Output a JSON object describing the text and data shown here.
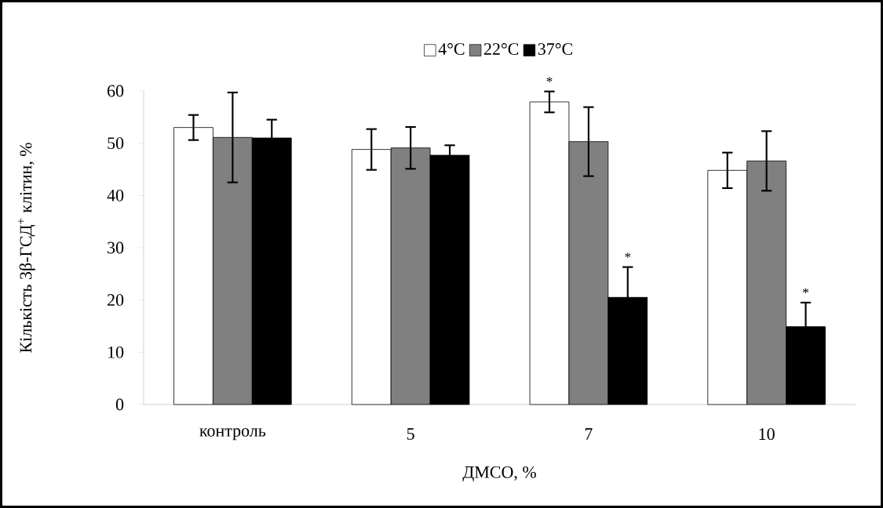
{
  "chart_data": {
    "type": "bar",
    "xlabel": "ДМСО, %",
    "ylabel": "Кількість 3β-ГСД$^{+}$ клітин, %",
    "categories": [
      "контроль",
      "5",
      "7",
      "10"
    ],
    "series": [
      {
        "name": "4°C",
        "color": "#ffffff",
        "values": [
          53.0,
          48.8,
          57.9,
          44.8
        ],
        "errors": [
          2.4,
          3.9,
          2.0,
          3.4
        ],
        "value_labels": [
          null,
          null,
          "*",
          null
        ]
      },
      {
        "name": "22°C",
        "color": "#808080",
        "values": [
          51.1,
          49.1,
          50.3,
          46.6
        ],
        "errors": [
          8.6,
          4.0,
          6.6,
          5.7
        ]
      },
      {
        "name": "37°C",
        "color": "#000000",
        "values": [
          51.0,
          47.7,
          20.5,
          14.9
        ],
        "errors": [
          3.5,
          1.9,
          5.8,
          4.6
        ],
        "value_labels": [
          null,
          null,
          "*",
          "*"
        ]
      }
    ],
    "ylim": [
      0,
      60
    ],
    "yticks": [
      0,
      10,
      20,
      30,
      40,
      50,
      60
    ],
    "legend": "top"
  }
}
